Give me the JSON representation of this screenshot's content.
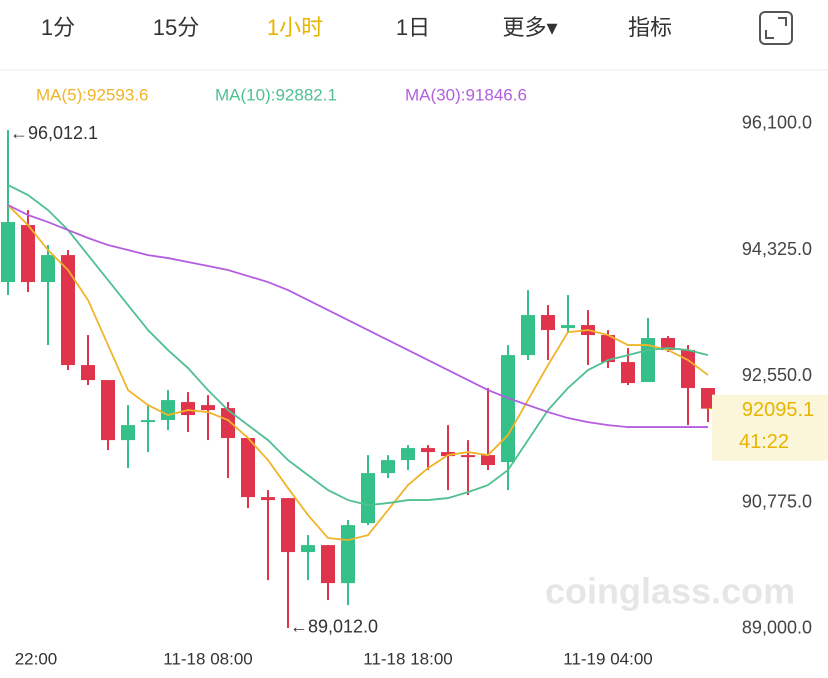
{
  "tabs": [
    "1分",
    "15分",
    "1小时",
    "1日",
    "更多▾",
    "指标"
  ],
  "active_tab": 2,
  "chart_data": {
    "type": "candlestick",
    "categories": [
      "22:00",
      null,
      null,
      null,
      null,
      null,
      null,
      null,
      null,
      null,
      "11-18 08:00",
      null,
      null,
      null,
      null,
      null,
      null,
      null,
      null,
      null,
      "11-18 18:00",
      null,
      null,
      null,
      null,
      null,
      null,
      null,
      null,
      null,
      "11-19 04:00",
      null,
      null,
      null,
      null,
      null
    ],
    "open": [
      93875,
      94676,
      93875,
      94254,
      92708,
      92497,
      91653,
      91906,
      91935,
      92188,
      92145,
      92103,
      91682,
      90852,
      90838,
      90079,
      90177,
      89643,
      90486,
      91189,
      91372,
      91541,
      91485,
      91442,
      91442,
      91344,
      92848,
      93411,
      93228,
      93270,
      93130,
      92750,
      92469,
      93088,
      92919,
      92385
    ],
    "high": [
      96012.1,
      94887,
      94395,
      94325,
      93130,
      92497,
      92145,
      92145,
      92356,
      92328,
      92286,
      92188,
      91682,
      90950,
      90838,
      90318,
      90177,
      90529,
      91442,
      91442,
      91583,
      91583,
      91864,
      91653,
      92385,
      92989,
      93762,
      93551,
      93692,
      93481,
      93200,
      92947,
      93369,
      93116,
      92989,
      92385
    ],
    "low": [
      93692,
      93734,
      92989,
      92638,
      92427,
      91513,
      91260,
      91485,
      91794,
      91766,
      91653,
      91119,
      90697,
      89685,
      89012.0,
      89685,
      89404,
      89333,
      90458,
      91119,
      91232,
      91232,
      90950,
      90880,
      91232,
      90950,
      92778,
      92778,
      93158,
      92708,
      92666,
      92427,
      92469,
      92891,
      91864,
      91906
    ],
    "close": [
      94718,
      93875,
      94254,
      92708,
      92497,
      91653,
      91864,
      91935,
      92216,
      92005,
      92075,
      91682,
      90852,
      90810,
      90079,
      90177,
      89643,
      90458,
      91189,
      91372,
      91541,
      91485,
      91428,
      91428,
      91302,
      92848,
      93411,
      93200,
      93270,
      93130,
      92750,
      92455,
      93088,
      92919,
      92385,
      92095.1
    ],
    "up_color": "#35c08a",
    "down_color": "#e0344c",
    "series": [
      {
        "name": "MA(5):92593.6",
        "color": "#f0b429",
        "values": [
          94957,
          94676,
          94325,
          94044,
          93622,
          92989,
          92356,
          92145,
          92005,
          92075,
          92047,
          91935,
          91682,
          91372,
          90979,
          90599,
          90276,
          90247,
          90318,
          90669,
          91021,
          91260,
          91442,
          91485,
          91442,
          91724,
          92216,
          92708,
          93172,
          93200,
          93130,
          92989,
          92989,
          92919,
          92778,
          92567
        ]
      },
      {
        "name": "MA(10):92882.1",
        "color": "#4fc08f",
        "values": [
          95239,
          95098,
          94887,
          94606,
          94254,
          93903,
          93551,
          93200,
          92919,
          92666,
          92356,
          92075,
          91864,
          91653,
          91372,
          91161,
          90950,
          90810,
          90739,
          90768,
          90810,
          90810,
          90838,
          90922,
          91021,
          91232,
          91653,
          92075,
          92385,
          92638,
          92778,
          92848,
          92919,
          92947,
          92919,
          92848
        ]
      },
      {
        "name": "MA(30):91846.6",
        "color": "#b35ee0",
        "values": [
          94957,
          94817,
          94718,
          94606,
          94494,
          94395,
          94325,
          94254,
          94212,
          94156,
          94100,
          94044,
          93959,
          93875,
          93762,
          93622,
          93481,
          93341,
          93200,
          93059,
          92919,
          92778,
          92638,
          92497,
          92356,
          92244,
          92145,
          92047,
          91963,
          91906,
          91864,
          91836,
          91836,
          91836,
          91836,
          91836
        ]
      }
    ],
    "ylim": [
      88843,
      96434
    ],
    "yticks": [
      {
        "value": 96100,
        "label": "96,100.0"
      },
      {
        "value": 94325,
        "label": "94,325.0"
      },
      {
        "value": 92550,
        "label": "92,550.0"
      },
      {
        "value": 90775,
        "label": "90,775.0"
      },
      {
        "value": 89000,
        "label": "89,000.0"
      }
    ],
    "high_label": "←96,012.1",
    "low_label": "←89,012.0",
    "last_price": 92095.1,
    "countdown": "41:22",
    "watermark": "coinglass.com"
  }
}
